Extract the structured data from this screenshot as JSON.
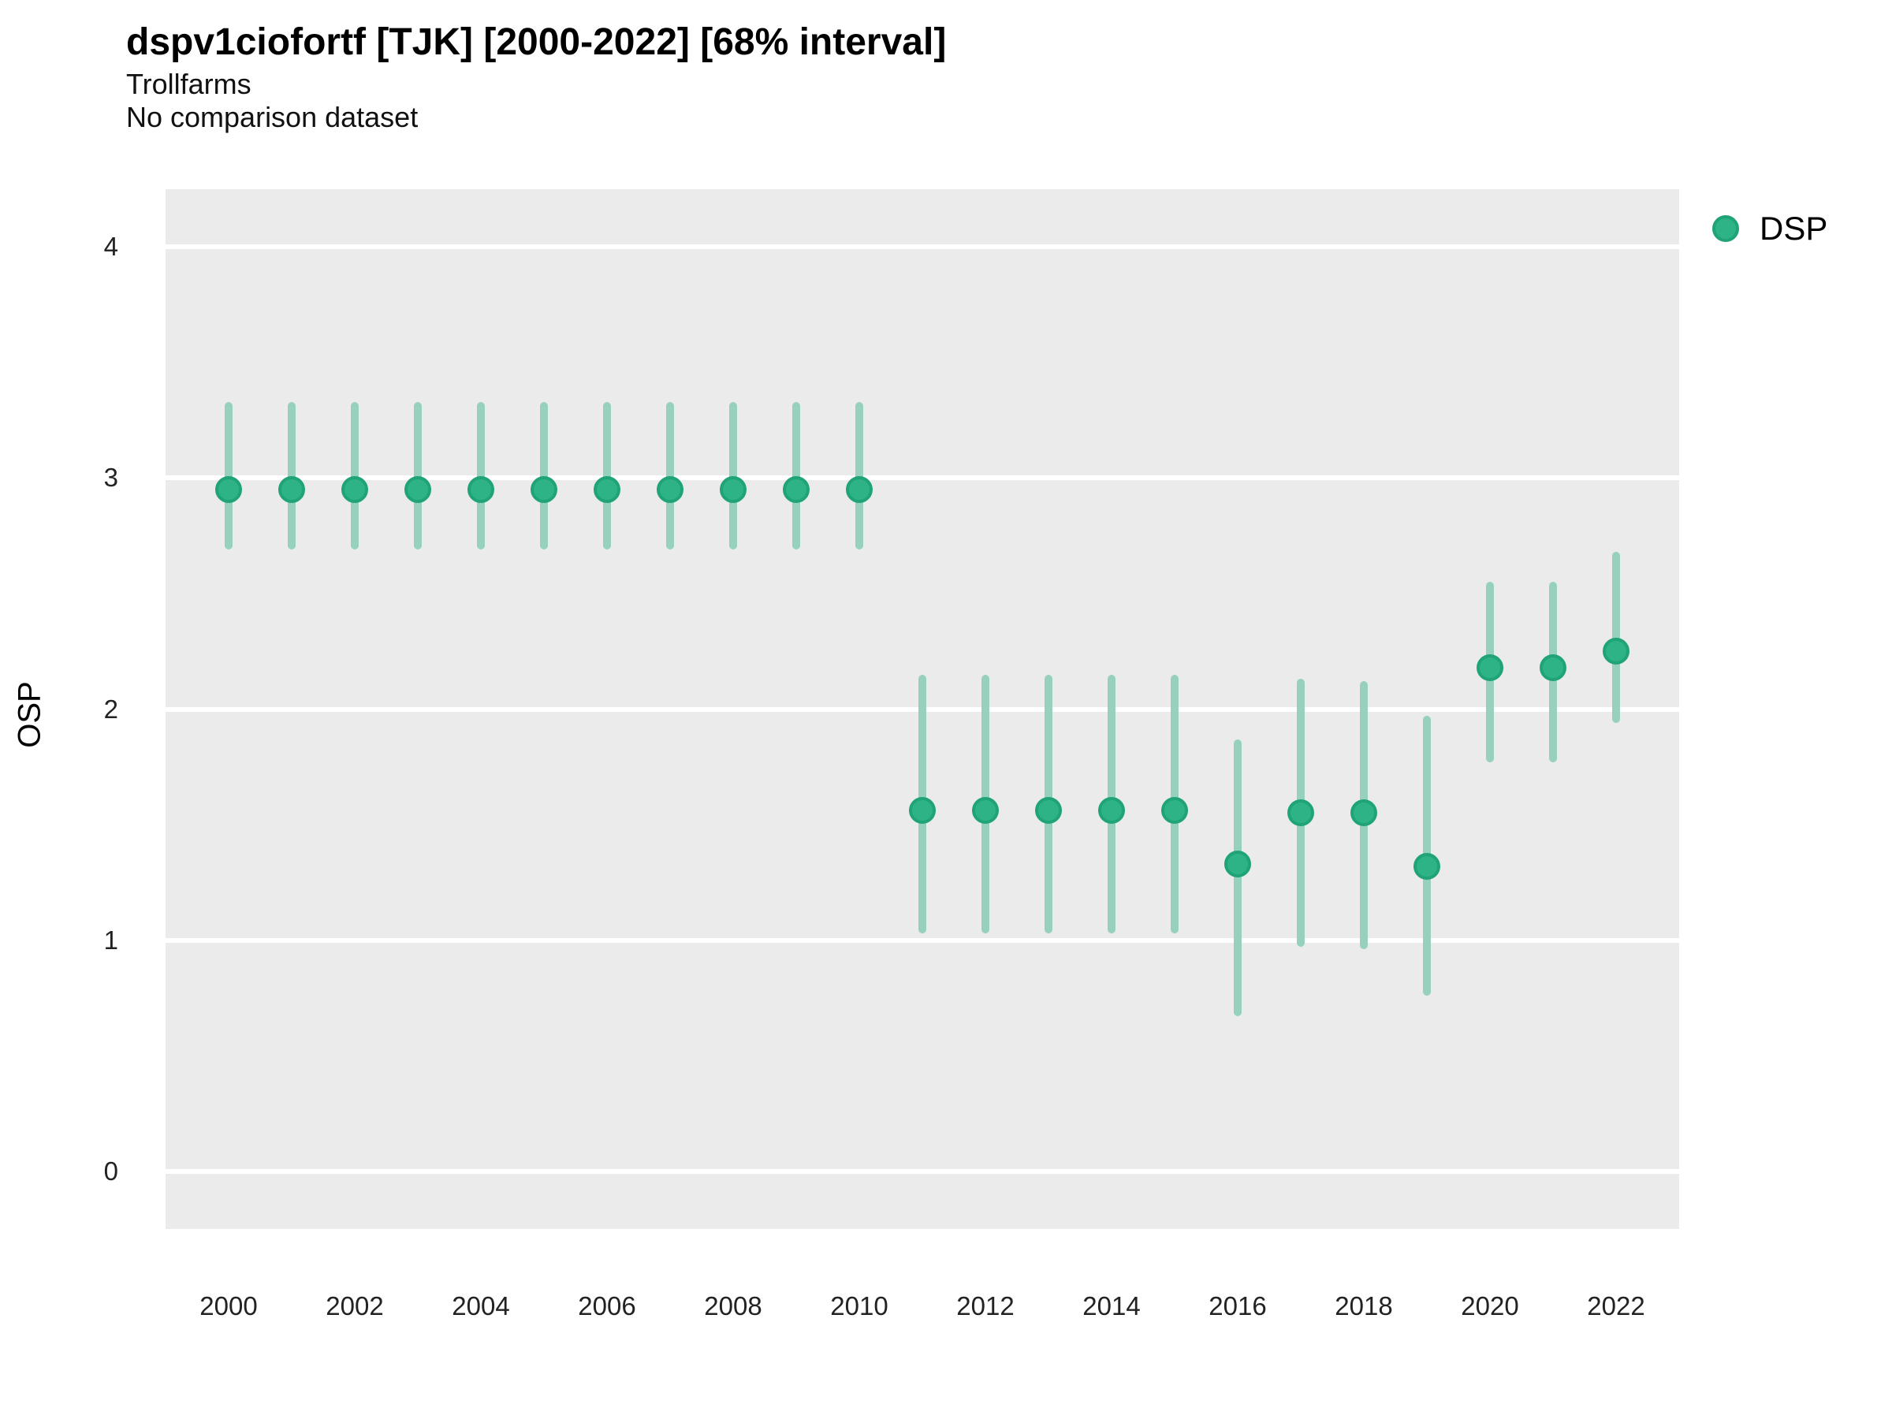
{
  "header": {
    "title": "dspv1ciofortf [TJK] [2000-2022] [68% interval]",
    "subtitle": "Trollfarms",
    "comparison_note": "No comparison dataset"
  },
  "y_axis": {
    "label": "OSP",
    "tick_values": [
      0,
      1,
      2,
      3,
      4
    ]
  },
  "x_axis": {
    "tick_values": [
      2000,
      2002,
      2004,
      2006,
      2008,
      2010,
      2012,
      2014,
      2016,
      2018,
      2020,
      2022
    ]
  },
  "legend": {
    "position": "right-top",
    "items": [
      {
        "label": "DSP",
        "marker": "circle-icon",
        "color": "#2db386"
      }
    ]
  },
  "colors": {
    "panel_background": "#ebebeb",
    "gridline": "#ffffff",
    "point_fill": "#2db386",
    "point_stroke": "#20a377",
    "interval_bar": "#96d1bb",
    "text": "#000000",
    "tick_text": "#222222"
  },
  "chart_data": {
    "type": "scatter",
    "subtype": "pointrange",
    "title": "dspv1ciofortf [TJK] [2000-2022] [68% interval]",
    "subtitle": "Trollfarms",
    "note": "No comparison dataset",
    "xlabel": "",
    "ylabel": "OSP",
    "xlim": [
      1999,
      2023
    ],
    "ylim": [
      -0.25,
      4.25
    ],
    "grid": "major-horizontal-only",
    "interval_level": "68%",
    "legend_position": "right-top",
    "series": [
      {
        "name": "DSP",
        "points": [
          {
            "year": 2000,
            "value": 2.95,
            "lo": 2.69,
            "hi": 3.33
          },
          {
            "year": 2001,
            "value": 2.95,
            "lo": 2.69,
            "hi": 3.33
          },
          {
            "year": 2002,
            "value": 2.95,
            "lo": 2.69,
            "hi": 3.33
          },
          {
            "year": 2003,
            "value": 2.95,
            "lo": 2.69,
            "hi": 3.33
          },
          {
            "year": 2004,
            "value": 2.95,
            "lo": 2.69,
            "hi": 3.33
          },
          {
            "year": 2005,
            "value": 2.95,
            "lo": 2.69,
            "hi": 3.33
          },
          {
            "year": 2006,
            "value": 2.95,
            "lo": 2.69,
            "hi": 3.33
          },
          {
            "year": 2007,
            "value": 2.95,
            "lo": 2.69,
            "hi": 3.33
          },
          {
            "year": 2008,
            "value": 2.95,
            "lo": 2.69,
            "hi": 3.33
          },
          {
            "year": 2009,
            "value": 2.95,
            "lo": 2.69,
            "hi": 3.33
          },
          {
            "year": 2010,
            "value": 2.95,
            "lo": 2.69,
            "hi": 3.33
          },
          {
            "year": 2011,
            "value": 1.56,
            "lo": 1.03,
            "hi": 2.15
          },
          {
            "year": 2012,
            "value": 1.56,
            "lo": 1.03,
            "hi": 2.15
          },
          {
            "year": 2013,
            "value": 1.56,
            "lo": 1.03,
            "hi": 2.15
          },
          {
            "year": 2014,
            "value": 1.56,
            "lo": 1.03,
            "hi": 2.15
          },
          {
            "year": 2015,
            "value": 1.56,
            "lo": 1.03,
            "hi": 2.15
          },
          {
            "year": 2016,
            "value": 1.33,
            "lo": 0.67,
            "hi": 1.87
          },
          {
            "year": 2017,
            "value": 1.55,
            "lo": 0.97,
            "hi": 2.13
          },
          {
            "year": 2018,
            "value": 1.55,
            "lo": 0.96,
            "hi": 2.12
          },
          {
            "year": 2019,
            "value": 1.32,
            "lo": 0.76,
            "hi": 1.97
          },
          {
            "year": 2020,
            "value": 2.18,
            "lo": 1.77,
            "hi": 2.55
          },
          {
            "year": 2021,
            "value": 2.18,
            "lo": 1.77,
            "hi": 2.55
          },
          {
            "year": 2022,
            "value": 2.25,
            "lo": 1.94,
            "hi": 2.68
          }
        ]
      }
    ]
  }
}
